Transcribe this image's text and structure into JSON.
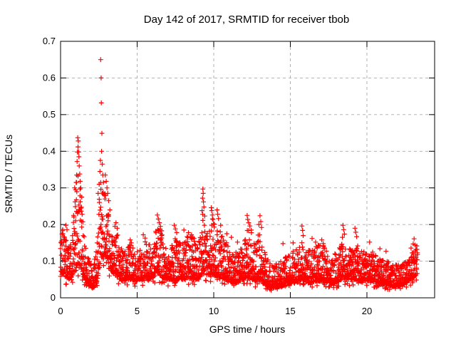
{
  "chart_data": {
    "type": "scatter",
    "title": "Day 142 of 2017, SRMTID for receiver tbob",
    "xlabel": "GPS time / hours",
    "ylabel": "SRMTID / TECUs",
    "xlim": [
      0,
      24.42
    ],
    "ylim": [
      0,
      0.7
    ],
    "xticks": {
      "values": [
        0,
        5,
        10,
        15,
        20
      ],
      "labels": [
        "0",
        "5",
        "10",
        "15",
        "20"
      ]
    },
    "yticks": {
      "values": [
        0,
        0.1,
        0.2,
        0.3,
        0.4,
        0.5,
        0.6,
        0.7
      ],
      "labels": [
        "0",
        "0.1",
        "0.2",
        "0.3",
        "0.4",
        "0.5",
        "0.6",
        "0.7"
      ]
    },
    "grid": {
      "show": true,
      "color": "#a9a9a9",
      "style": "dashed"
    },
    "background": "#ffffff",
    "axis_color": "#000000",
    "legend": "none",
    "series": [
      {
        "name": "SRMTID",
        "marker": "plus",
        "color": "#ff0000",
        "x_start_hours": 0.0,
        "x_end_hours": 23.3,
        "sample_step_hours": 0.008333,
        "seed": 1142,
        "band_envelope_t_lo_hi": [
          [
            0.0,
            0.075,
            0.185
          ],
          [
            0.25,
            0.06,
            0.19
          ],
          [
            0.5,
            0.05,
            0.135
          ],
          [
            0.7,
            0.055,
            0.16
          ],
          [
            0.9,
            0.07,
            0.24
          ],
          [
            1.05,
            0.085,
            0.33
          ],
          [
            1.2,
            0.09,
            0.36
          ],
          [
            1.35,
            0.08,
            0.3
          ],
          [
            1.5,
            0.06,
            0.18
          ],
          [
            1.7,
            0.045,
            0.12
          ],
          [
            1.95,
            0.032,
            0.095
          ],
          [
            2.15,
            0.03,
            0.09
          ],
          [
            2.35,
            0.04,
            0.14
          ],
          [
            2.5,
            0.07,
            0.27
          ],
          [
            2.62,
            0.1,
            0.34
          ],
          [
            2.75,
            0.11,
            0.32
          ],
          [
            2.9,
            0.12,
            0.3
          ],
          [
            3.05,
            0.11,
            0.27
          ],
          [
            3.2,
            0.08,
            0.2
          ],
          [
            3.45,
            0.065,
            0.17
          ],
          [
            3.65,
            0.06,
            0.19
          ],
          [
            3.85,
            0.05,
            0.15
          ],
          [
            4.1,
            0.05,
            0.125
          ],
          [
            4.35,
            0.05,
            0.14
          ],
          [
            4.6,
            0.05,
            0.15
          ],
          [
            4.85,
            0.045,
            0.12
          ],
          [
            5.1,
            0.05,
            0.13
          ],
          [
            5.45,
            0.05,
            0.16
          ],
          [
            5.75,
            0.05,
            0.145
          ],
          [
            6.0,
            0.055,
            0.15
          ],
          [
            6.3,
            0.065,
            0.2
          ],
          [
            6.55,
            0.06,
            0.185
          ],
          [
            6.8,
            0.05,
            0.14
          ],
          [
            7.1,
            0.05,
            0.125
          ],
          [
            7.45,
            0.05,
            0.175
          ],
          [
            7.7,
            0.05,
            0.155
          ],
          [
            8.0,
            0.05,
            0.15
          ],
          [
            8.3,
            0.055,
            0.17
          ],
          [
            8.6,
            0.05,
            0.17
          ],
          [
            8.9,
            0.05,
            0.155
          ],
          [
            9.15,
            0.06,
            0.2
          ],
          [
            9.3,
            0.075,
            0.26
          ],
          [
            9.45,
            0.065,
            0.21
          ],
          [
            9.65,
            0.06,
            0.17
          ],
          [
            9.9,
            0.065,
            0.22
          ],
          [
            10.15,
            0.06,
            0.21
          ],
          [
            10.4,
            0.055,
            0.185
          ],
          [
            10.7,
            0.05,
            0.16
          ],
          [
            11.0,
            0.045,
            0.14
          ],
          [
            11.3,
            0.04,
            0.125
          ],
          [
            11.6,
            0.042,
            0.13
          ],
          [
            11.9,
            0.048,
            0.15
          ],
          [
            12.2,
            0.055,
            0.2
          ],
          [
            12.45,
            0.05,
            0.18
          ],
          [
            12.7,
            0.045,
            0.155
          ],
          [
            12.95,
            0.05,
            0.185
          ],
          [
            13.2,
            0.04,
            0.14
          ],
          [
            13.5,
            0.032,
            0.11
          ],
          [
            13.8,
            0.028,
            0.09
          ],
          [
            14.1,
            0.028,
            0.095
          ],
          [
            14.45,
            0.032,
            0.105
          ],
          [
            14.8,
            0.038,
            0.115
          ],
          [
            15.1,
            0.04,
            0.125
          ],
          [
            15.45,
            0.045,
            0.135
          ],
          [
            15.75,
            0.05,
            0.165
          ],
          [
            16.0,
            0.045,
            0.14
          ],
          [
            16.3,
            0.04,
            0.13
          ],
          [
            16.6,
            0.045,
            0.14
          ],
          [
            17.1,
            0.045,
            0.15
          ],
          [
            17.5,
            0.04,
            0.115
          ],
          [
            17.9,
            0.04,
            0.12
          ],
          [
            18.2,
            0.045,
            0.135
          ],
          [
            18.45,
            0.055,
            0.165
          ],
          [
            18.7,
            0.05,
            0.14
          ],
          [
            19.0,
            0.05,
            0.135
          ],
          [
            19.3,
            0.05,
            0.155
          ],
          [
            19.6,
            0.045,
            0.13
          ],
          [
            19.9,
            0.045,
            0.125
          ],
          [
            20.15,
            0.05,
            0.14
          ],
          [
            20.45,
            0.04,
            0.12
          ],
          [
            20.75,
            0.04,
            0.115
          ],
          [
            21.05,
            0.038,
            0.105
          ],
          [
            21.35,
            0.035,
            0.1
          ],
          [
            21.65,
            0.03,
            0.092
          ],
          [
            21.95,
            0.032,
            0.09
          ],
          [
            22.25,
            0.035,
            0.095
          ],
          [
            22.55,
            0.04,
            0.105
          ],
          [
            22.8,
            0.048,
            0.115
          ],
          [
            23.0,
            0.055,
            0.125
          ],
          [
            23.15,
            0.06,
            0.135
          ],
          [
            23.3,
            0.065,
            0.15
          ]
        ],
        "peak_points_t_v": [
          [
            0.15,
            0.175
          ],
          [
            0.35,
            0.198
          ],
          [
            0.42,
            0.186
          ],
          [
            0.85,
            0.225
          ],
          [
            0.92,
            0.3
          ],
          [
            0.95,
            0.262
          ],
          [
            0.98,
            0.295
          ],
          [
            1.02,
            0.315
          ],
          [
            1.05,
            0.335
          ],
          [
            1.08,
            0.372
          ],
          [
            1.1,
            0.398
          ],
          [
            1.12,
            0.437
          ],
          [
            1.14,
            0.412
          ],
          [
            1.16,
            0.428
          ],
          [
            1.18,
            0.398
          ],
          [
            1.2,
            0.385
          ],
          [
            1.22,
            0.36
          ],
          [
            1.25,
            0.338
          ],
          [
            1.28,
            0.318
          ],
          [
            1.32,
            0.3
          ],
          [
            1.38,
            0.275
          ],
          [
            2.45,
            0.285
          ],
          [
            2.52,
            0.31
          ],
          [
            2.57,
            0.345
          ],
          [
            2.6,
            0.375
          ],
          [
            2.62,
            0.65
          ],
          [
            2.645,
            0.6
          ],
          [
            2.66,
            0.532
          ],
          [
            2.7,
            0.449
          ],
          [
            2.68,
            0.4
          ],
          [
            2.72,
            0.365
          ],
          [
            2.76,
            0.335
          ],
          [
            2.8,
            0.315
          ],
          [
            2.92,
            0.335
          ],
          [
            2.98,
            0.318
          ],
          [
            3.03,
            0.3
          ],
          [
            3.08,
            0.285
          ],
          [
            3.14,
            0.265
          ],
          [
            3.22,
            0.24
          ],
          [
            3.55,
            0.195
          ],
          [
            3.62,
            0.205
          ],
          [
            3.7,
            0.19
          ],
          [
            4.55,
            0.158
          ],
          [
            4.62,
            0.15
          ],
          [
            5.4,
            0.172
          ],
          [
            5.52,
            0.163
          ],
          [
            6.32,
            0.226
          ],
          [
            6.38,
            0.215
          ],
          [
            6.45,
            0.205
          ],
          [
            6.52,
            0.195
          ],
          [
            6.6,
            0.183
          ],
          [
            7.42,
            0.198
          ],
          [
            7.5,
            0.188
          ],
          [
            7.58,
            0.178
          ],
          [
            8.05,
            0.185
          ],
          [
            8.35,
            0.178
          ],
          [
            8.55,
            0.172
          ],
          [
            9.24,
            0.238
          ],
          [
            9.27,
            0.272
          ],
          [
            9.29,
            0.297
          ],
          [
            9.31,
            0.285
          ],
          [
            9.33,
            0.262
          ],
          [
            9.36,
            0.248
          ],
          [
            9.84,
            0.246
          ],
          [
            9.87,
            0.238
          ],
          [
            9.91,
            0.226
          ],
          [
            9.95,
            0.214
          ],
          [
            10.22,
            0.24
          ],
          [
            10.26,
            0.228
          ],
          [
            10.31,
            0.216
          ],
          [
            10.45,
            0.198
          ],
          [
            10.85,
            0.175
          ],
          [
            11.15,
            0.165
          ],
          [
            11.55,
            0.152
          ],
          [
            12.18,
            0.225
          ],
          [
            12.22,
            0.214
          ],
          [
            12.28,
            0.205
          ],
          [
            12.36,
            0.196
          ],
          [
            12.45,
            0.185
          ],
          [
            12.95,
            0.2
          ],
          [
            13.02,
            0.224
          ],
          [
            13.07,
            0.208
          ],
          [
            13.12,
            0.192
          ],
          [
            14.52,
            0.148
          ],
          [
            15.18,
            0.15
          ],
          [
            15.76,
            0.196
          ],
          [
            15.8,
            0.184
          ],
          [
            15.84,
            0.17
          ],
          [
            16.42,
            0.162
          ],
          [
            16.65,
            0.152
          ],
          [
            17.05,
            0.158
          ],
          [
            17.15,
            0.148
          ],
          [
            18.4,
            0.165
          ],
          [
            18.44,
            0.198
          ],
          [
            18.48,
            0.186
          ],
          [
            18.53,
            0.174
          ],
          [
            19.22,
            0.19
          ],
          [
            19.27,
            0.179
          ],
          [
            19.33,
            0.167
          ],
          [
            20.18,
            0.152
          ],
          [
            20.85,
            0.134
          ],
          [
            21.25,
            0.127
          ],
          [
            22.88,
            0.136
          ],
          [
            23.02,
            0.147
          ],
          [
            23.08,
            0.161
          ],
          [
            23.14,
            0.144
          ],
          [
            23.2,
            0.132
          ]
        ]
      }
    ]
  }
}
